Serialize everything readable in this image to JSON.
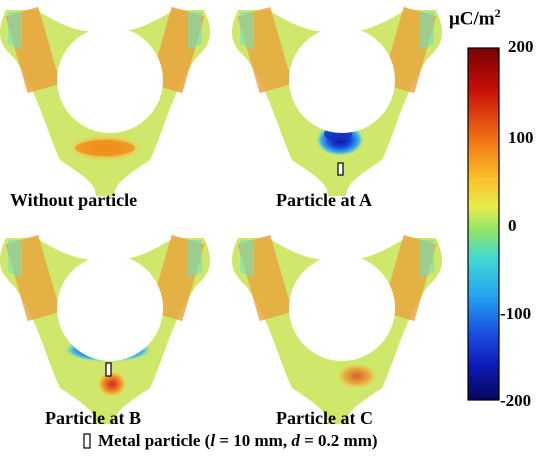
{
  "panels": [
    {
      "label": "Without particle",
      "particle": null
    },
    {
      "label": "Particle at A",
      "particle": "A"
    },
    {
      "label": "Particle at B",
      "particle": "B"
    },
    {
      "label": "Particle at C",
      "particle": "C"
    }
  ],
  "colorbar": {
    "unit_main": "μC/m",
    "unit_exp": "2",
    "ticks": [
      "200",
      "100",
      "0",
      "-100",
      "-200"
    ],
    "stops": [
      "#7a0000",
      "#e32418",
      "#fca51a",
      "#f8e73d",
      "#aee85c",
      "#49dcc9",
      "#2aa8ee",
      "#1c4fe0",
      "#0a0a8c"
    ]
  },
  "legend": {
    "prefix": "Metal particle  (",
    "l_sym": "l",
    "l_val": " = 10 mm, ",
    "d_sym": "d",
    "d_val": " = 0.2 mm)"
  }
}
